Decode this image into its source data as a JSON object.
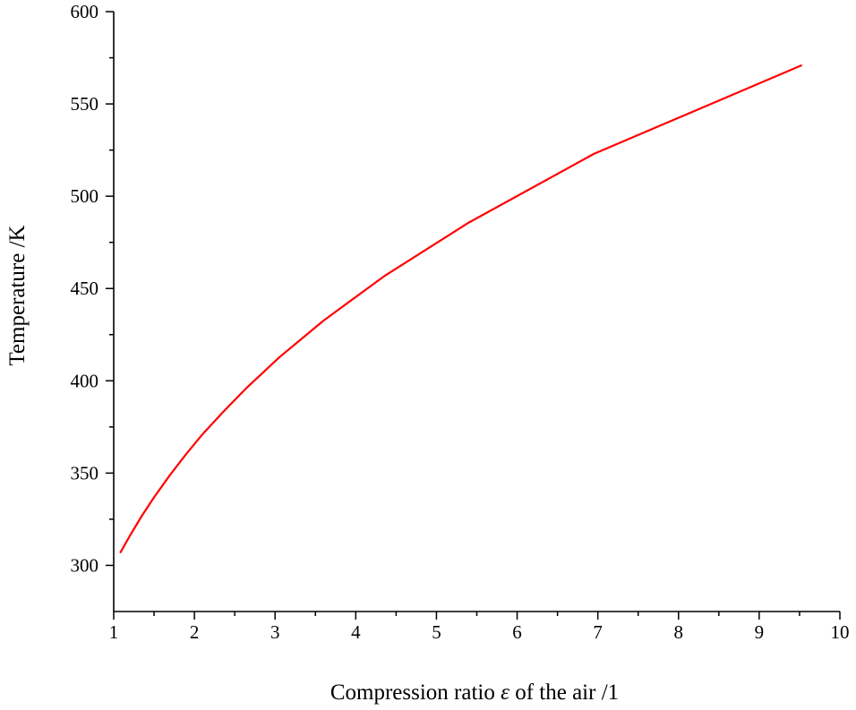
{
  "chart_data": {
    "type": "line",
    "title": "",
    "xlabel": "Compression ratio ε of the air /1",
    "xlabel_parts": {
      "pre": "Compression ratio ",
      "symbol": "ε",
      "post": " of the air /1"
    },
    "ylabel": "Temperature /K",
    "xlim": [
      1,
      10
    ],
    "ylim": [
      275,
      600
    ],
    "x_ticks": [
      "1",
      "2",
      "3",
      "4",
      "5",
      "6",
      "7",
      "8",
      "9",
      "10"
    ],
    "y_ticks": [
      "300",
      "350",
      "400",
      "450",
      "500",
      "550",
      "600"
    ],
    "grid": false,
    "legend": "none",
    "series": [
      {
        "color": "#ff0000",
        "x": [
          1.08,
          1.2,
          1.35,
          1.5,
          1.7,
          1.9,
          2.1,
          2.35,
          2.65,
          3.05,
          3.6,
          4.35,
          5.4,
          6.95,
          9.53
        ],
        "y": [
          306.7,
          316.0,
          326.9,
          336.9,
          349.1,
          360.4,
          371.0,
          382.9,
          396.3,
          412.6,
          432.6,
          456.6,
          485.7,
          522.9,
          571.0
        ]
      }
    ]
  }
}
